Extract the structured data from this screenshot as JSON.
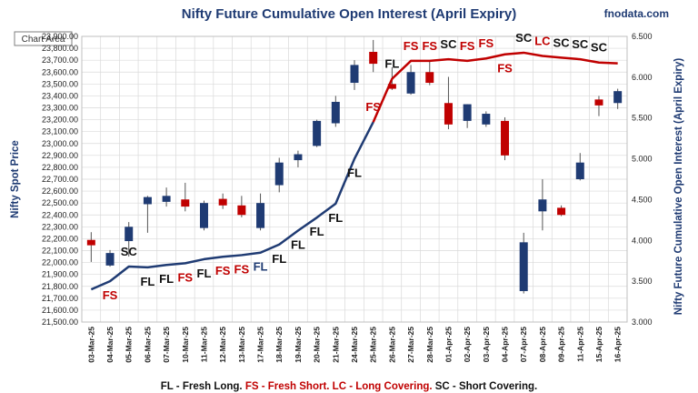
{
  "header": {
    "title": "Nifty Future Cumulative Open Interest (April Expiry)",
    "brand": "fnodata.com",
    "chart_area_label": "Chart Area"
  },
  "legend": {
    "parts": [
      {
        "text": "FL - Fresh Long.",
        "color": "#111111"
      },
      {
        "text": " FS - Fresh Short.",
        "color": "#c00000"
      },
      {
        "text": " LC - Long Covering.",
        "color": "#c00000"
      },
      {
        "text": " SC - Short Covering.",
        "color": "#111111"
      }
    ]
  },
  "colors": {
    "axis_text": "#1f3b73",
    "up_candle": "#1f3b73",
    "down_candle": "#c00000",
    "oi_line_before": "#1f3b73",
    "oi_line_after": "#c00000",
    "grid": "#d9d9d9"
  },
  "chart_data": {
    "type": "candlestick+line",
    "title": "Nifty Future Cumulative Open Interest (April Expiry)",
    "ylabel_left": "Nifty Spot Price",
    "ylabel_right": "Nifty Future Cumulative Open Interest (April Expiry)",
    "ylim_left": [
      21500,
      23900
    ],
    "ytick_step_left": 50,
    "ylim_right": [
      3.0,
      6.5
    ],
    "ytick_step_right": 0.5,
    "grid": true,
    "categories": [
      "03-Mar-25",
      "04-Mar-25",
      "05-Mar-25",
      "06-Mar-25",
      "07-Mar-25",
      "10-Mar-25",
      "11-Mar-25",
      "12-Mar-25",
      "13-Mar-25",
      "17-Mar-25",
      "18-Mar-25",
      "19-Mar-25",
      "20-Mar-25",
      "21-Mar-25",
      "24-Mar-25",
      "25-Mar-25",
      "26-Mar-25",
      "27-Mar-25",
      "28-Mar-25",
      "01-Apr-25",
      "02-Apr-25",
      "03-Apr-25",
      "04-Apr-25",
      "07-Apr-25",
      "08-Apr-25",
      "09-Apr-25",
      "11-Apr-25",
      "15-Apr-25",
      "16-Apr-25"
    ],
    "candles": [
      {
        "o": 22190,
        "h": 22255,
        "l": 22005,
        "c": 22145
      },
      {
        "o": 21975,
        "h": 22105,
        "l": 21965,
        "c": 22080
      },
      {
        "o": 22180,
        "h": 22340,
        "l": 22050,
        "c": 22300
      },
      {
        "o": 22490,
        "h": 22560,
        "l": 22250,
        "c": 22550
      },
      {
        "o": 22510,
        "h": 22630,
        "l": 22470,
        "c": 22560
      },
      {
        "o": 22530,
        "h": 22670,
        "l": 22430,
        "c": 22470
      },
      {
        "o": 22290,
        "h": 22520,
        "l": 22270,
        "c": 22500
      },
      {
        "o": 22535,
        "h": 22580,
        "l": 22450,
        "c": 22480
      },
      {
        "o": 22480,
        "h": 22560,
        "l": 22380,
        "c": 22400
      },
      {
        "o": 22290,
        "h": 22580,
        "l": 22270,
        "c": 22500
      },
      {
        "o": 22650,
        "h": 22880,
        "l": 22590,
        "c": 22840
      },
      {
        "o": 22860,
        "h": 22940,
        "l": 22800,
        "c": 22910
      },
      {
        "o": 22980,
        "h": 23200,
        "l": 22970,
        "c": 23190
      },
      {
        "o": 23170,
        "h": 23400,
        "l": 23140,
        "c": 23350
      },
      {
        "o": 23510,
        "h": 23700,
        "l": 23450,
        "c": 23660
      },
      {
        "o": 23770,
        "h": 23870,
        "l": 23600,
        "c": 23670
      },
      {
        "o": 23500,
        "h": 23640,
        "l": 23450,
        "c": 23460
      },
      {
        "o": 23420,
        "h": 23660,
        "l": 23410,
        "c": 23600
      },
      {
        "o": 23600,
        "h": 23700,
        "l": 23490,
        "c": 23510
      },
      {
        "o": 23340,
        "h": 23560,
        "l": 23120,
        "c": 23160
      },
      {
        "o": 23190,
        "h": 23330,
        "l": 23130,
        "c": 23330
      },
      {
        "o": 23160,
        "h": 23270,
        "l": 23140,
        "c": 23250
      },
      {
        "o": 23190,
        "h": 23220,
        "l": 22860,
        "c": 22900
      },
      {
        "o": 21760,
        "h": 22250,
        "l": 21740,
        "c": 22170
      },
      {
        "o": 22430,
        "h": 22700,
        "l": 22270,
        "c": 22530
      },
      {
        "o": 22460,
        "h": 22480,
        "l": 22390,
        "c": 22400
      },
      {
        "o": 22700,
        "h": 22920,
        "l": 22690,
        "c": 22840
      },
      {
        "o": 23370,
        "h": 23400,
        "l": 23230,
        "c": 23320
      },
      {
        "o": 23340,
        "h": 23460,
        "l": 23290,
        "c": 23440
      }
    ],
    "open_interest": [
      3.4,
      3.5,
      3.68,
      3.67,
      3.7,
      3.72,
      3.77,
      3.8,
      3.82,
      3.85,
      3.95,
      4.12,
      4.28,
      4.45,
      5.0,
      5.45,
      5.98,
      6.2,
      6.2,
      6.22,
      6.2,
      6.23,
      6.28,
      6.3,
      6.26,
      6.24,
      6.22,
      6.18,
      6.17
    ],
    "oi_color_change_after": 15,
    "annotations": [
      {
        "i": 1,
        "label": "FS",
        "color": "#c00000",
        "above": false
      },
      {
        "i": 2,
        "label": "SC",
        "color": "#111111",
        "above": true
      },
      {
        "i": 3,
        "label": "FL",
        "color": "#111111",
        "above": false
      },
      {
        "i": 4,
        "label": "FL",
        "color": "#111111",
        "above": false
      },
      {
        "i": 5,
        "label": "FS",
        "color": "#c00000",
        "above": false
      },
      {
        "i": 6,
        "label": "FL",
        "color": "#111111",
        "above": false
      },
      {
        "i": 7,
        "label": "FS",
        "color": "#c00000",
        "above": false
      },
      {
        "i": 8,
        "label": "FS",
        "color": "#c00000",
        "above": false
      },
      {
        "i": 9,
        "label": "FL",
        "color": "#1f3b73",
        "above": false
      },
      {
        "i": 10,
        "label": "FL",
        "color": "#111111",
        "above": false
      },
      {
        "i": 11,
        "label": "FL",
        "color": "#111111",
        "above": false
      },
      {
        "i": 12,
        "label": "FL",
        "color": "#111111",
        "above": false
      },
      {
        "i": 13,
        "label": "FL",
        "color": "#111111",
        "above": false
      },
      {
        "i": 14,
        "label": "FL",
        "color": "#111111",
        "above": false
      },
      {
        "i": 15,
        "label": "FS",
        "color": "#c00000",
        "above": true
      },
      {
        "i": 16,
        "label": "FL",
        "color": "#111111",
        "above": true
      },
      {
        "i": 17,
        "label": "FS",
        "color": "#c00000",
        "above": true
      },
      {
        "i": 18,
        "label": "FS",
        "color": "#c00000",
        "above": true
      },
      {
        "i": 19,
        "label": "SC",
        "color": "#111111",
        "above": true
      },
      {
        "i": 20,
        "label": "FS",
        "color": "#c00000",
        "above": true
      },
      {
        "i": 21,
        "label": "FS",
        "color": "#c00000",
        "above": true
      },
      {
        "i": 22,
        "label": "FS",
        "color": "#c00000",
        "above": false
      },
      {
        "i": 23,
        "label": "SC",
        "color": "#111111",
        "above": true
      },
      {
        "i": 24,
        "label": "LC",
        "color": "#c00000",
        "above": true
      },
      {
        "i": 25,
        "label": "SC",
        "color": "#111111",
        "above": true
      },
      {
        "i": 26,
        "label": "SC",
        "color": "#111111",
        "above": true
      },
      {
        "i": 27,
        "label": "SC",
        "color": "#111111",
        "above": true
      }
    ]
  }
}
